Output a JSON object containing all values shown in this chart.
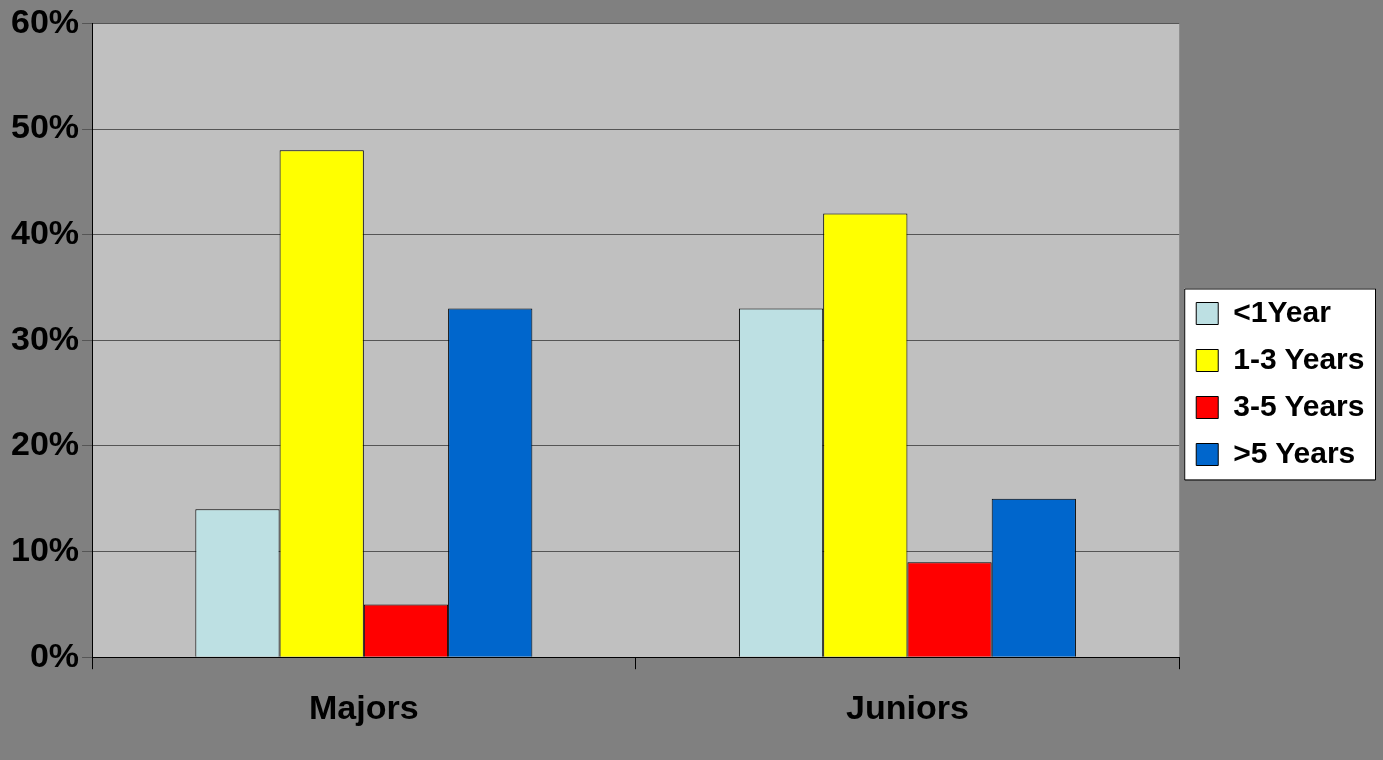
{
  "chart_data": {
    "type": "bar",
    "categories": [
      "Majors",
      "Juniors"
    ],
    "series": [
      {
        "name": "<1Year",
        "color": "#bde0e3",
        "values": [
          14,
          33
        ]
      },
      {
        "name": "1-3 Years",
        "color": "#ffff00",
        "values": [
          48,
          42
        ]
      },
      {
        "name": "3-5 Years",
        "color": "#ff0000",
        "values": [
          5,
          9
        ]
      },
      {
        "name": ">5 Years",
        "color": "#0066cc",
        "values": [
          33,
          15
        ]
      }
    ],
    "ylim": [
      0,
      60
    ],
    "yticks": [
      {
        "value": 0,
        "label": "0%"
      },
      {
        "value": 10,
        "label": "10%"
      },
      {
        "value": 20,
        "label": "20%"
      },
      {
        "value": 30,
        "label": "30%"
      },
      {
        "value": 40,
        "label": "40%"
      },
      {
        "value": 50,
        "label": "50%"
      },
      {
        "value": 60,
        "label": "60%"
      }
    ],
    "grid": "y",
    "legend": "right"
  }
}
